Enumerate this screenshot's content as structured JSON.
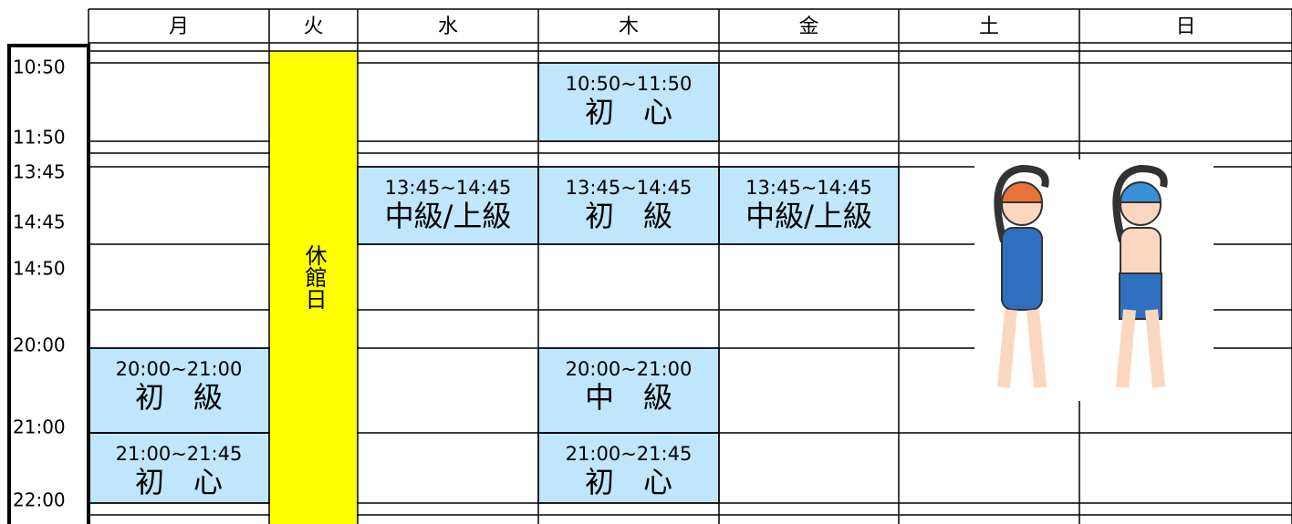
{
  "header": {
    "days": [
      "月",
      "火",
      "水",
      "木",
      "金",
      "土",
      "日"
    ]
  },
  "times": [
    "10:50",
    "11:50",
    "13:45",
    "14:45",
    "14:50",
    "20:00",
    "21:00",
    "22:00"
  ],
  "closed": {
    "label": "休館日"
  },
  "sessions": [
    {
      "time": "10:50~11:50",
      "name": "初　心"
    },
    {
      "time": "13:45~14:45",
      "name": "中級/上級"
    },
    {
      "time": "13:45~14:45",
      "name": "初　級"
    },
    {
      "time": "13:45~14:45",
      "name": "中級/上級"
    },
    {
      "time": "20:00~21:00",
      "name": "初　級"
    },
    {
      "time": "20:00~21:00",
      "name": "中　級"
    },
    {
      "time": "21:00~21:45",
      "name": "初　心"
    },
    {
      "time": "21:00~21:45",
      "name": "初　心"
    }
  ]
}
